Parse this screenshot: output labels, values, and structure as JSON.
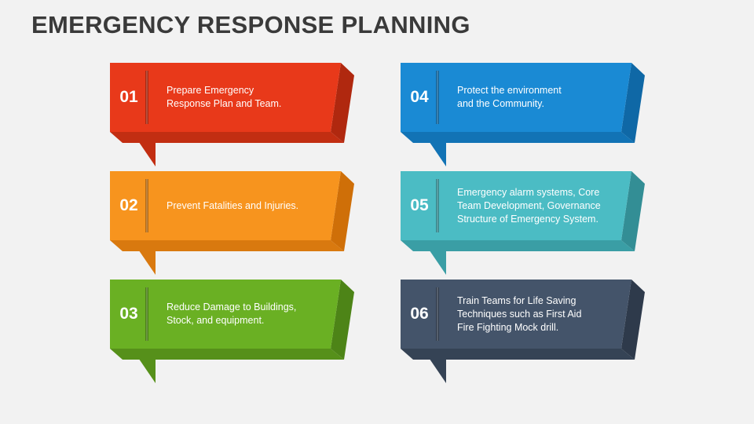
{
  "title": "EMERGENCY RESPONSE PLANNING",
  "steps": [
    {
      "number": "01",
      "text": "Prepare Emergency\nResponse Plan and Team.",
      "face": "#e8391a",
      "side": "#b0280f",
      "bottom": "#c22e12"
    },
    {
      "number": "02",
      "text": "Prevent Fatalities and Injuries.",
      "face": "#f7941e",
      "side": "#cf6f08",
      "bottom": "#d9790f"
    },
    {
      "number": "03",
      "text": "Reduce Damage to Buildings,\nStock, and equipment.",
      "face": "#6ab023",
      "side": "#4d8417",
      "bottom": "#56901a"
    },
    {
      "number": "04",
      "text": "Protect the environment\nand the Community.",
      "face": "#1a8ad4",
      "side": "#0f68a6",
      "bottom": "#1273b5"
    },
    {
      "number": "05",
      "text": "Emergency alarm systems, Core\nTeam Development, Governance\nStructure of Emergency System.",
      "face": "#4bbcc4",
      "side": "#338e95",
      "bottom": "#3a9ea5"
    },
    {
      "number": "06",
      "text": "Train Teams for Life Saving\nTechniques such as First Aid\nFire Fighting Mock drill.",
      "face": "#44546a",
      "side": "#2e3a4b",
      "bottom": "#354355"
    }
  ]
}
